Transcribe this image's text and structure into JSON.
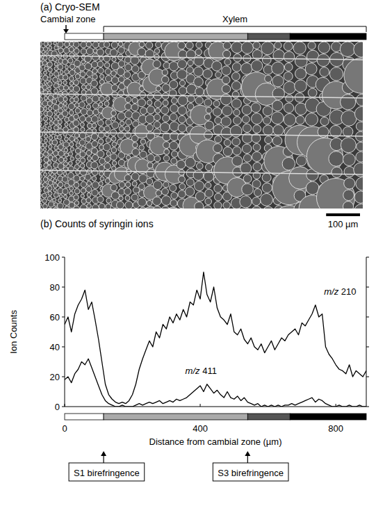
{
  "panel_a": {
    "title": "(a) Cryo-SEM",
    "cambial_label": "Cambial zone",
    "xylem_label": "Xylem",
    "scale_bar": {
      "value": 100,
      "label": "100 µm"
    }
  },
  "chart_data": {
    "type": "line",
    "title": "(b) Counts of syringin ions",
    "x_label": "Distance from cambial zone (µm)",
    "y_label": "Ion Counts",
    "x": [
      0,
      10,
      20,
      30,
      40,
      50,
      60,
      70,
      80,
      90,
      100,
      110,
      120,
      130,
      140,
      150,
      160,
      170,
      180,
      190,
      200,
      210,
      220,
      230,
      240,
      250,
      260,
      270,
      280,
      290,
      300,
      310,
      320,
      330,
      340,
      350,
      360,
      370,
      380,
      390,
      400,
      410,
      420,
      430,
      440,
      450,
      460,
      470,
      480,
      490,
      500,
      510,
      520,
      530,
      540,
      550,
      560,
      570,
      580,
      590,
      600,
      610,
      620,
      630,
      640,
      650,
      660,
      670,
      680,
      690,
      700,
      710,
      720,
      730,
      740,
      750,
      760,
      770,
      780,
      790,
      800,
      810,
      820,
      830,
      840,
      850,
      860,
      870,
      880,
      890
    ],
    "series": [
      {
        "name": "m/z 210",
        "color": "#000000",
        "values": [
          55,
          60,
          50,
          62,
          68,
          72,
          78,
          65,
          70,
          58,
          45,
          30,
          15,
          8,
          5,
          3,
          2,
          3,
          2,
          4,
          8,
          15,
          25,
          32,
          38,
          44,
          40,
          50,
          46,
          55,
          52,
          60,
          56,
          62,
          58,
          65,
          60,
          70,
          68,
          78,
          72,
          90,
          75,
          70,
          80,
          66,
          60,
          58,
          55,
          62,
          50,
          48,
          52,
          45,
          42,
          46,
          40,
          38,
          42,
          36,
          40,
          44,
          38,
          42,
          46,
          44,
          48,
          50,
          52,
          48,
          56,
          54,
          58,
          62,
          68,
          60,
          62,
          40,
          35,
          32,
          28,
          25,
          24,
          22,
          28,
          20,
          24,
          22,
          20,
          24
        ]
      },
      {
        "name": "m/z 411",
        "color": "#000000",
        "values": [
          18,
          20,
          16,
          22,
          25,
          30,
          28,
          32,
          26,
          20,
          14,
          8,
          4,
          2,
          1,
          0,
          0,
          1,
          0,
          0,
          0,
          1,
          2,
          1,
          2,
          3,
          2,
          3,
          4,
          2,
          3,
          4,
          3,
          5,
          4,
          5,
          6,
          8,
          10,
          12,
          14,
          10,
          15,
          12,
          9,
          11,
          8,
          6,
          10,
          6,
          5,
          7,
          4,
          6,
          3,
          2,
          1,
          2,
          0,
          1,
          0,
          1,
          0,
          1,
          0,
          1,
          1,
          2,
          1,
          2,
          3,
          4,
          5,
          6,
          3,
          5,
          4,
          2,
          1,
          0,
          0,
          1,
          0,
          0,
          1,
          0,
          0,
          1,
          0,
          0
        ]
      }
    ],
    "xlim": [
      0,
      890
    ],
    "xticks": [
      0,
      400,
      800
    ],
    "ylim": [
      0,
      100
    ],
    "yticks": [
      0,
      20,
      40,
      60,
      80,
      100
    ],
    "zones": {
      "edges": [
        0,
        115,
        540,
        665,
        890
      ],
      "colors": [
        "#ffffff",
        "#aaaaaa",
        "#555555",
        "#000000"
      ]
    },
    "annotations": [
      {
        "text": "S1 birefringence",
        "x": 115
      },
      {
        "text": "S3 birefringence",
        "x": 540
      }
    ]
  }
}
